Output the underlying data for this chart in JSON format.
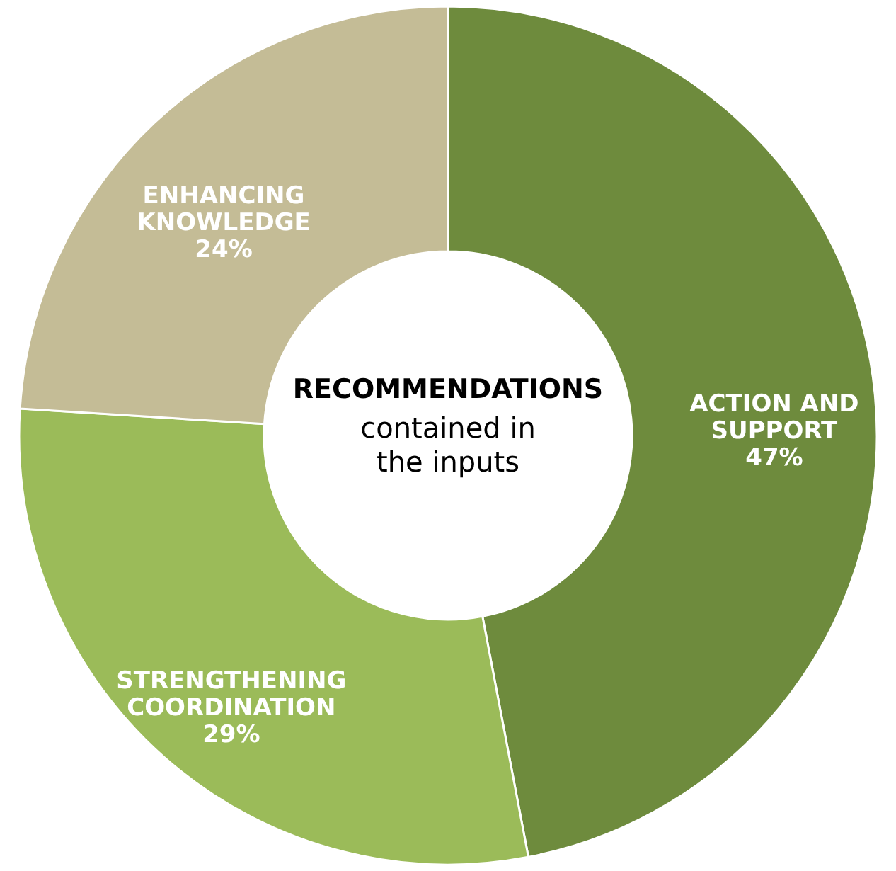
{
  "chart_data": {
    "type": "donut",
    "categories": [
      "ACTION AND SUPPORT",
      "STRENGTHENING COORDINATION",
      "ENHANCING KNOWLEDGE"
    ],
    "values": [
      47,
      29,
      24
    ],
    "value_labels": [
      "47%",
      "29%",
      "24%"
    ],
    "colors": [
      "#6e8b3d",
      "#9bbb59",
      "#c4bc96"
    ],
    "annotations": [
      "RECOMMENDATIONS",
      "contained in the inputs"
    ],
    "legend": false
  }
}
